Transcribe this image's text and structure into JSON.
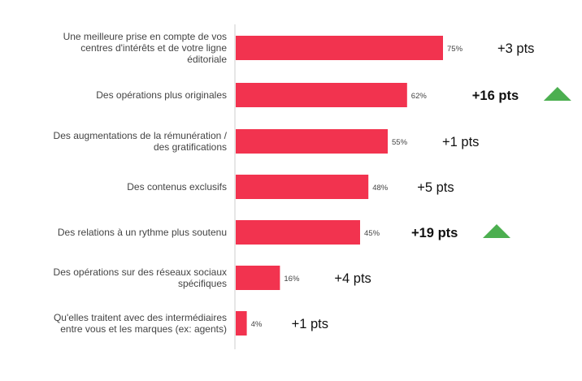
{
  "chart_data": {
    "type": "bar",
    "orientation": "horizontal",
    "categories": [
      [
        "Une meilleure prise en compte de vos",
        "centres d'intérêts et de votre ligne",
        "éditoriale"
      ],
      [
        "Des opérations plus originales"
      ],
      [
        "Des augmentations de la rémunération /",
        "des gratifications"
      ],
      [
        "Des contenus exclusifs"
      ],
      [
        "Des relations à un rythme plus soutenu"
      ],
      [
        "Des opérations sur des réseaux sociaux",
        "spécifiques"
      ],
      [
        "Qu'elles traitent avec des intermédiaires",
        "entre vous et les marques (ex: agents)"
      ]
    ],
    "values": [
      75,
      62,
      55,
      48,
      45,
      16,
      4
    ],
    "value_labels": [
      "75%",
      "62%",
      "55%",
      "48%",
      "45%",
      "16%",
      "4%"
    ],
    "deltas": [
      "+3 pts",
      "+16 pts",
      "+1 pts",
      "+5 pts",
      "+19 pts",
      "+4 pts",
      "+1 pts"
    ],
    "delta_highlight": [
      false,
      true,
      false,
      false,
      true,
      false,
      false
    ],
    "delta_up_arrow": [
      false,
      true,
      false,
      false,
      true,
      false,
      false
    ],
    "xlim": [
      0,
      100
    ],
    "grid": false,
    "bar_color": "#f2334f",
    "arrow_color": "#4caf50",
    "axis_color": "#cccccc"
  }
}
